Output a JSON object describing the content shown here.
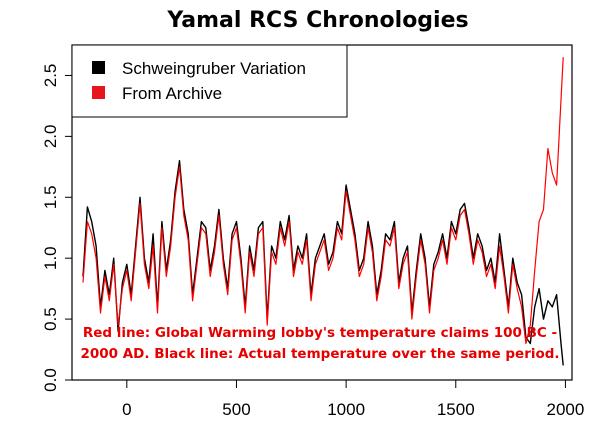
{
  "chart_data": {
    "type": "line",
    "title": "Yamal RCS Chronologies",
    "xlabel": "",
    "ylabel": "",
    "xlim": [
      -250,
      2030
    ],
    "ylim": [
      0.0,
      2.75
    ],
    "x_ticks": [
      0,
      500,
      1000,
      1500,
      2000
    ],
    "x_tick_labels": [
      "0",
      "500",
      "1000",
      "1500",
      "2000"
    ],
    "y_ticks": [
      0.0,
      0.5,
      1.0,
      1.5,
      2.0,
      2.5
    ],
    "y_tick_labels": [
      "0.0",
      "0.5",
      "1.0",
      "1.5",
      "2.0",
      "2.5"
    ],
    "grid": false,
    "legend_position": "top-left",
    "series": [
      {
        "name": "Schweingruber Variation",
        "color": "#000000",
        "x": [
          -200,
          -180,
          -160,
          -140,
          -120,
          -100,
          -80,
          -60,
          -40,
          -20,
          0,
          20,
          40,
          60,
          80,
          100,
          120,
          140,
          160,
          180,
          200,
          220,
          240,
          260,
          280,
          300,
          320,
          340,
          360,
          380,
          400,
          420,
          440,
          460,
          480,
          500,
          520,
          540,
          560,
          580,
          600,
          620,
          640,
          660,
          680,
          700,
          720,
          740,
          760,
          780,
          800,
          820,
          840,
          860,
          880,
          900,
          920,
          940,
          960,
          980,
          1000,
          1020,
          1040,
          1060,
          1080,
          1100,
          1120,
          1140,
          1160,
          1180,
          1200,
          1220,
          1240,
          1260,
          1280,
          1300,
          1320,
          1340,
          1360,
          1380,
          1400,
          1420,
          1440,
          1460,
          1480,
          1500,
          1520,
          1540,
          1560,
          1580,
          1600,
          1620,
          1640,
          1660,
          1680,
          1700,
          1720,
          1740,
          1760,
          1780,
          1800,
          1820,
          1840,
          1860,
          1880,
          1900,
          1920,
          1940,
          1960,
          1980,
          1990
        ],
        "values": [
          0.85,
          1.42,
          1.3,
          1.1,
          0.6,
          0.9,
          0.7,
          1.0,
          0.4,
          0.8,
          0.95,
          0.7,
          1.1,
          1.5,
          1.0,
          0.8,
          1.2,
          0.6,
          1.3,
          0.9,
          1.15,
          1.55,
          1.8,
          1.4,
          1.2,
          0.7,
          1.0,
          1.3,
          1.25,
          0.9,
          1.1,
          1.4,
          1.0,
          0.75,
          1.2,
          1.3,
          1.0,
          0.6,
          1.1,
          0.9,
          1.25,
          1.3,
          0.5,
          1.1,
          1.0,
          1.3,
          1.15,
          1.35,
          0.9,
          1.1,
          1.0,
          1.2,
          0.7,
          1.0,
          1.1,
          1.2,
          0.95,
          1.05,
          1.3,
          1.2,
          1.6,
          1.4,
          1.2,
          0.9,
          1.0,
          1.3,
          1.1,
          0.7,
          0.9,
          1.2,
          1.15,
          1.3,
          0.8,
          1.0,
          1.1,
          0.55,
          0.9,
          1.2,
          1.0,
          0.6,
          0.95,
          1.05,
          1.2,
          1.0,
          1.3,
          1.2,
          1.4,
          1.45,
          1.25,
          1.0,
          1.2,
          1.1,
          0.9,
          1.0,
          0.8,
          1.2,
          0.9,
          0.6,
          1.0,
          0.8,
          0.7,
          0.35,
          0.3,
          0.6,
          0.75,
          0.5,
          0.65,
          0.6,
          0.7,
          0.3,
          0.12
        ]
      },
      {
        "name": "From Archive",
        "color": "#ff0000",
        "x": [
          -200,
          -180,
          -160,
          -140,
          -120,
          -100,
          -80,
          -60,
          -40,
          -20,
          0,
          20,
          40,
          60,
          80,
          100,
          120,
          140,
          160,
          180,
          200,
          220,
          240,
          260,
          280,
          300,
          320,
          340,
          360,
          380,
          400,
          420,
          440,
          460,
          480,
          500,
          520,
          540,
          560,
          580,
          600,
          620,
          640,
          660,
          680,
          700,
          720,
          740,
          760,
          780,
          800,
          820,
          840,
          860,
          880,
          900,
          920,
          940,
          960,
          980,
          1000,
          1020,
          1040,
          1060,
          1080,
          1100,
          1120,
          1140,
          1160,
          1180,
          1200,
          1220,
          1240,
          1260,
          1280,
          1300,
          1320,
          1340,
          1360,
          1380,
          1400,
          1420,
          1440,
          1460,
          1480,
          1500,
          1520,
          1540,
          1560,
          1580,
          1600,
          1620,
          1640,
          1660,
          1680,
          1700,
          1720,
          1740,
          1760,
          1780,
          1800,
          1820,
          1840,
          1860,
          1880,
          1900,
          1920,
          1940,
          1960,
          1980,
          1990
        ],
        "values": [
          0.8,
          1.3,
          1.2,
          1.0,
          0.55,
          0.85,
          0.65,
          0.95,
          0.45,
          0.75,
          0.9,
          0.65,
          1.05,
          1.45,
          0.95,
          0.75,
          1.1,
          0.55,
          1.25,
          0.85,
          1.1,
          1.5,
          1.75,
          1.35,
          1.15,
          0.65,
          0.95,
          1.25,
          1.2,
          0.85,
          1.05,
          1.35,
          0.95,
          0.7,
          1.15,
          1.25,
          0.95,
          0.55,
          1.05,
          0.85,
          1.2,
          1.25,
          0.45,
          1.05,
          0.95,
          1.25,
          1.1,
          1.3,
          0.85,
          1.05,
          0.95,
          1.15,
          0.65,
          0.95,
          1.05,
          1.15,
          0.9,
          1.0,
          1.25,
          1.15,
          1.55,
          1.35,
          1.15,
          0.85,
          0.95,
          1.25,
          1.05,
          0.65,
          0.85,
          1.15,
          1.1,
          1.25,
          0.75,
          0.95,
          1.05,
          0.5,
          0.85,
          1.15,
          0.95,
          0.55,
          0.9,
          1.0,
          1.15,
          0.95,
          1.25,
          1.15,
          1.35,
          1.4,
          1.2,
          0.95,
          1.15,
          1.05,
          0.85,
          0.95,
          0.75,
          1.1,
          0.85,
          0.55,
          0.95,
          0.75,
          0.6,
          0.3,
          0.45,
          0.9,
          1.3,
          1.4,
          1.9,
          1.7,
          1.6,
          2.3,
          2.65
        ]
      }
    ]
  },
  "legend": {
    "items": [
      {
        "label": "Schweingruber Variation",
        "color": "#000000"
      },
      {
        "label": "From Archive",
        "color": "#e8141d"
      }
    ]
  },
  "annotation": {
    "line1": "Red line: Global Warming lobby's temperature claims 100 BC -",
    "line2": "2000 AD. Black line: Actual temperature over the same period.",
    "color": "#e60000"
  }
}
